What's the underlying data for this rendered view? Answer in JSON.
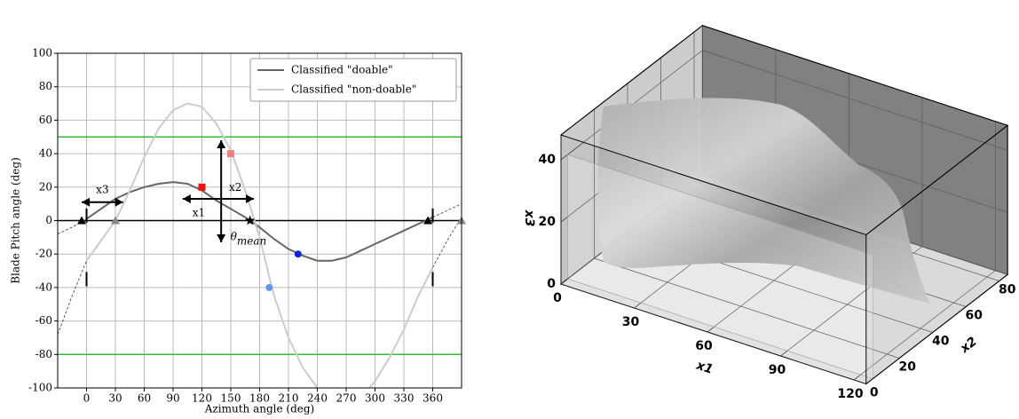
{
  "chart_data": [
    {
      "type": "line",
      "xlabel": "Azimuth angle (deg)",
      "ylabel": "Blade Pitch angle (deg)",
      "xlim": [
        -30,
        390
      ],
      "ylim": [
        -100,
        100
      ],
      "xticks": [
        0,
        30,
        60,
        90,
        120,
        150,
        180,
        210,
        240,
        270,
        300,
        330,
        360
      ],
      "yticks": [
        -100,
        -80,
        -60,
        -40,
        -20,
        0,
        20,
        40,
        60,
        80,
        100
      ],
      "grid": true,
      "legend": "upper right",
      "x": [
        -30,
        -15,
        0,
        15,
        30,
        45,
        60,
        75,
        90,
        105,
        120,
        135,
        150,
        165,
        180,
        195,
        210,
        225,
        240,
        255,
        270,
        285,
        300,
        315,
        330,
        345,
        360,
        375,
        390
      ],
      "series": [
        {
          "name": "Classified \"doable\"",
          "color": "#666666",
          "values": [
            -8,
            -4,
            1,
            7,
            13,
            17,
            20,
            22,
            23,
            22,
            18,
            12,
            7,
            2,
            -4,
            -11,
            -17,
            -21,
            -24,
            -24,
            -22,
            -18,
            -14,
            -10,
            -6,
            -2,
            2,
            6,
            10
          ]
        },
        {
          "name": "Classified \"non-doable\"",
          "color": "#cccccc",
          "values": [
            -68,
            -45,
            -24,
            -12,
            0,
            18,
            38,
            55,
            66,
            70,
            68,
            58,
            42,
            18,
            -10,
            -45,
            -70,
            -88,
            -100,
            -108,
            -110,
            -106,
            -96,
            -82,
            -65,
            -45,
            -28,
            -12,
            2
          ]
        }
      ],
      "hlines": [
        {
          "value": 50,
          "color": "#33bb33"
        },
        {
          "value": -80,
          "color": "#33bb33"
        },
        {
          "value": 0,
          "color": "#000000"
        }
      ],
      "markers": [
        {
          "x": 120,
          "y": 20,
          "shape": "square",
          "color": "#ee1111"
        },
        {
          "x": 150,
          "y": 40,
          "shape": "square",
          "color": "#f08080"
        },
        {
          "x": 220,
          "y": -20,
          "shape": "circle",
          "color": "#1122dd"
        },
        {
          "x": 190,
          "y": -40,
          "shape": "circle",
          "color": "#6495ed"
        },
        {
          "x": 170,
          "y": 0,
          "shape": "star",
          "color": "#000000"
        },
        {
          "x": -5,
          "y": 0,
          "shape": "triangle",
          "color": "#000000"
        },
        {
          "x": 355,
          "y": 0,
          "shape": "triangle",
          "color": "#000000"
        },
        {
          "x": 30,
          "y": 0,
          "shape": "triangle",
          "color": "#888888"
        },
        {
          "x": 390,
          "y": 0,
          "shape": "triangle",
          "color": "#888888"
        },
        {
          "x": 0,
          "y": 3,
          "shape": "vbar",
          "color": "#000000"
        },
        {
          "x": 360,
          "y": 3,
          "shape": "vbar",
          "color": "#000000"
        },
        {
          "x": 0,
          "y": -35,
          "shape": "vbar",
          "color": "#000000"
        },
        {
          "x": 360,
          "y": -35,
          "shape": "vbar",
          "color": "#000000"
        }
      ],
      "annotations": [
        {
          "text": "x3",
          "from": [
            -5,
            11
          ],
          "to": [
            38,
            11
          ]
        },
        {
          "text": "x1",
          "from": [
            100,
            13
          ],
          "to": [
            174,
            13
          ]
        },
        {
          "text": "x2",
          "from": [
            140,
            -13
          ],
          "to": [
            140,
            48
          ]
        }
      ],
      "theta_label": {
        "text": "θ",
        "sub": "mean",
        "x": 170,
        "y": 0
      }
    },
    {
      "type": "surface3d",
      "xlabel": "x1",
      "ylabel": "x2",
      "zlabel": "x3",
      "xlim": [
        0,
        125
      ],
      "ylim": [
        0,
        85
      ],
      "zlim": [
        0,
        48
      ],
      "xticks": [
        0,
        30,
        60,
        90,
        120
      ],
      "yticks": [
        0,
        20,
        40,
        60,
        80
      ],
      "zticks": [
        0,
        20,
        40
      ]
    }
  ]
}
